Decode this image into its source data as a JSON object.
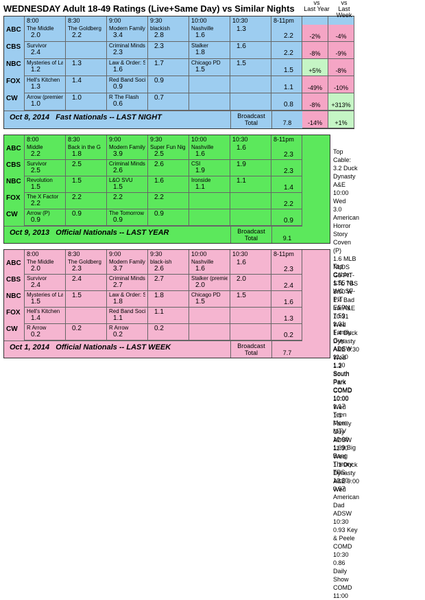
{
  "title": "WEDNESDAY Adult 18-49 Ratings (Live+Same Day) vs Similar Nights",
  "timecols": [
    "8:00",
    "8:30",
    "9:00",
    "9:30",
    "10:00",
    "10:30",
    "8-11pm"
  ],
  "vsLastYear": "vs Last Year",
  "vsLastWeek": "vs Last Week",
  "broadcastTotal": "Broadcast Total",
  "topCable": "Top Cable:",
  "panels": [
    {
      "color": "blue",
      "date": "Oct 8, 2014",
      "label": "Fast Nationals -- LAST NIGHT",
      "btVal": "7.8",
      "btYear": "-14%",
      "btWeek": "+1%",
      "btYearCls": "neg",
      "btWeekCls": "pos",
      "rows": [
        {
          "net": "ABC",
          "cells": [
            [
              "The Middle",
              "2.0"
            ],
            [
              "The Goldberg",
              "2.2"
            ],
            [
              "Modern Family",
              "3.4"
            ],
            [
              "blackish",
              "2.8"
            ],
            [
              "Nashville",
              "1.6"
            ],
            [
              "",
              "1.3"
            ]
          ],
          "prime": "2.2",
          "y": "-2%",
          "w": "-4%",
          "yC": "neg",
          "wC": "neg"
        },
        {
          "net": "CBS",
          "cells": [
            [
              "Survivor",
              "2.4"
            ],
            [
              "",
              ""
            ],
            [
              "Criminal Minds",
              "2.3"
            ],
            [
              "",
              "2.3"
            ],
            [
              "Stalker",
              "1.8"
            ],
            [
              "",
              "1.6"
            ]
          ],
          "prime": "2.2",
          "y": "-8%",
          "w": "-9%",
          "yC": "neg",
          "wC": "neg"
        },
        {
          "net": "NBC",
          "cells": [
            [
              "Mysteries of Laura",
              "1.2"
            ],
            [
              "",
              "1.3"
            ],
            [
              "Law & Order: SVU",
              "1.6"
            ],
            [
              "",
              "1.7"
            ],
            [
              "Chicago PD",
              "1.5"
            ],
            [
              "",
              "1.5"
            ]
          ],
          "prime": "1.5",
          "y": "+5%",
          "w": "-8%",
          "yC": "pos",
          "wC": "neg"
        },
        {
          "net": "FOX",
          "cells": [
            [
              "Hell's Kitchen",
              "1.3"
            ],
            [
              "",
              "1.4"
            ],
            [
              "Red Band Society",
              "0.9"
            ],
            [
              "",
              "0.9"
            ],
            [
              "",
              ""
            ],
            [
              "",
              ""
            ]
          ],
          "prime": "1.1",
          "y": "-49%",
          "w": "-10%",
          "yC": "neg",
          "wC": "neg"
        },
        {
          "net": "CW",
          "cells": [
            [
              "Arrow (premiere)",
              "1.0"
            ],
            [
              "",
              "1.0"
            ],
            [
              "R The Flash",
              "0.6"
            ],
            [
              "",
              "0.7"
            ],
            [
              "",
              ""
            ],
            [
              "",
              ""
            ]
          ],
          "prime": "0.8",
          "y": "-8%",
          "w": "+313%",
          "yC": "neg",
          "wC": "pos"
        }
      ]
    },
    {
      "color": "green",
      "date": "Oct 9, 2013",
      "label": "Official Nationals -- LAST YEAR",
      "btVal": "9.1",
      "cable": [
        "3.2 Duck Dynasty A&E 10:00 Wed",
        "3.0 American Horror Story Coven (P)",
        "1.6 MLB NLDS G5 PIT-STL TBS 8:00 W",
        "1.4 Bad Ink A&E 10:31 Wed",
        "1.4 Duck Dynasty A&E 9:30 Wed",
        "1.2 South Park COMD 10:00 Wed",
        "1.1 Family Guy ADSW 11:30 Wed",
        "1.1 Duck Dynasty A&E 9:00 Wed"
      ],
      "rows": [
        {
          "net": "ABC",
          "cells": [
            [
              "Middle",
              "2.2"
            ],
            [
              "Back in the G",
              "1.8"
            ],
            [
              "Modern Family",
              "3.9"
            ],
            [
              "Super Fun Nig",
              "2.5"
            ],
            [
              "Nashville",
              "1.6"
            ],
            [
              "",
              "1.6"
            ]
          ],
          "prime": "2.3"
        },
        {
          "net": "CBS",
          "cells": [
            [
              "Survivor",
              "2.5"
            ],
            [
              "",
              "2.5"
            ],
            [
              "Criminal Minds",
              "2.6"
            ],
            [
              "",
              "2.6"
            ],
            [
              "CSI",
              "1.9"
            ],
            [
              "",
              "1.9"
            ]
          ],
          "prime": "2.3"
        },
        {
          "net": "NBC",
          "cells": [
            [
              "Revolution",
              "1.5"
            ],
            [
              "",
              "1.5"
            ],
            [
              "L&O SVU",
              "1.5"
            ],
            [
              "",
              "1.6"
            ],
            [
              "Ironside",
              "1.1"
            ],
            [
              "",
              "1.1"
            ]
          ],
          "prime": "1.4"
        },
        {
          "net": "FOX",
          "cells": [
            [
              "The X Factor",
              "2.2"
            ],
            [
              "",
              "2.2"
            ],
            [
              "",
              "2.2"
            ],
            [
              "",
              "2.2"
            ],
            [
              "",
              ""
            ],
            [
              "",
              ""
            ]
          ],
          "prime": "2.2"
        },
        {
          "net": "CW",
          "cells": [
            [
              "Arrow (P)",
              "0.9"
            ],
            [
              "",
              "0.9"
            ],
            [
              "The Tomorrow People",
              "0.9"
            ],
            [
              "",
              "0.9"
            ],
            [
              "",
              ""
            ],
            [
              "",
              ""
            ]
          ],
          "prime": "0.9"
        }
      ]
    },
    {
      "color": "pink",
      "date": "Oct 1, 2014",
      "label": "Official Nationals -- LAST WEEK",
      "btVal": "7.7",
      "cable": [
        "1.55 NL WC SF-PIT ESPN 7:59",
        "1.31 Family Guy ADSW 11:30",
        "1.30 South Park COMD 10:00",
        "1.17 Teen Mom MTV 10:00",
        "1.09 Big Bang Theory TBS 10:30",
        "0.97 American Dad ADSW 10:30",
        "0.93 Key & Peele COMD 10:30",
        "0.86 Daily Show COMD 11:00"
      ],
      "rows": [
        {
          "net": "ABC",
          "cells": [
            [
              "The Middle",
              "2.0"
            ],
            [
              "The Goldberg",
              "2.3"
            ],
            [
              "Modern Family",
              "3.7"
            ],
            [
              "black-ish",
              "2.6"
            ],
            [
              "Nashville",
              "1.6"
            ],
            [
              "",
              "1.6"
            ]
          ],
          "prime": "2.3"
        },
        {
          "net": "CBS",
          "cells": [
            [
              "Survivor",
              "2.4"
            ],
            [
              "",
              "2.4"
            ],
            [
              "Criminal Minds",
              "2.7"
            ],
            [
              "",
              "2.7"
            ],
            [
              "Stalker (premiere)",
              "2.0"
            ],
            [
              "",
              "2.0"
            ]
          ],
          "prime": "2.4"
        },
        {
          "net": "NBC",
          "cells": [
            [
              "Mysteries of Laura",
              "1.5"
            ],
            [
              "",
              "1.5"
            ],
            [
              "Law & Order: SVU",
              "1.8"
            ],
            [
              "",
              "1.8"
            ],
            [
              "Chicago PD",
              "1.5"
            ],
            [
              "",
              "1.5"
            ]
          ],
          "prime": "1.6"
        },
        {
          "net": "FOX",
          "cells": [
            [
              "Hell's Kitchen",
              "1.4"
            ],
            [
              "",
              ""
            ],
            [
              "Red Band Society",
              "1.1"
            ],
            [
              "",
              "1.1"
            ],
            [
              "",
              ""
            ],
            [
              "",
              ""
            ]
          ],
          "prime": "1.3"
        },
        {
          "net": "CW",
          "cells": [
            [
              "R Arrow",
              "0.2"
            ],
            [
              "",
              "0.2"
            ],
            [
              "R Arrow",
              "0.2"
            ],
            [
              "",
              "0.2"
            ],
            [
              "",
              ""
            ],
            [
              "",
              ""
            ]
          ],
          "prime": "0.2"
        }
      ]
    }
  ]
}
